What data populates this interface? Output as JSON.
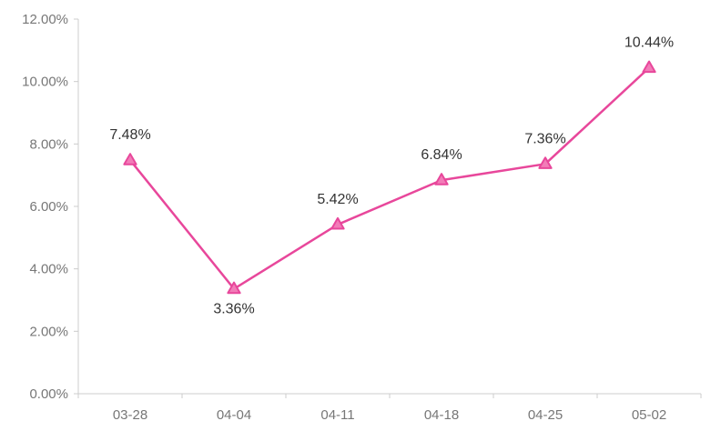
{
  "chart_data": {
    "type": "line",
    "categories": [
      "03-28",
      "04-04",
      "04-11",
      "04-18",
      "04-25",
      "05-02"
    ],
    "series": [
      {
        "values": [
          7.48,
          3.36,
          5.42,
          6.84,
          7.36,
          10.44
        ],
        "labels": [
          "7.48%",
          "3.36%",
          "5.42%",
          "6.84%",
          "7.36%",
          "10.44%"
        ],
        "color": "#e8479b",
        "marker": "triangle",
        "marker_fill": "#f27cb8"
      }
    ],
    "y_ticks": [
      0,
      2,
      4,
      6,
      8,
      10,
      12
    ],
    "y_tick_labels": [
      "0.00%",
      "2.00%",
      "4.00%",
      "6.00%",
      "8.00%",
      "10.00%",
      "12.00%"
    ],
    "ylim": [
      0,
      12
    ],
    "grid": false,
    "legend": "none",
    "axis_color": "#cccccc"
  }
}
